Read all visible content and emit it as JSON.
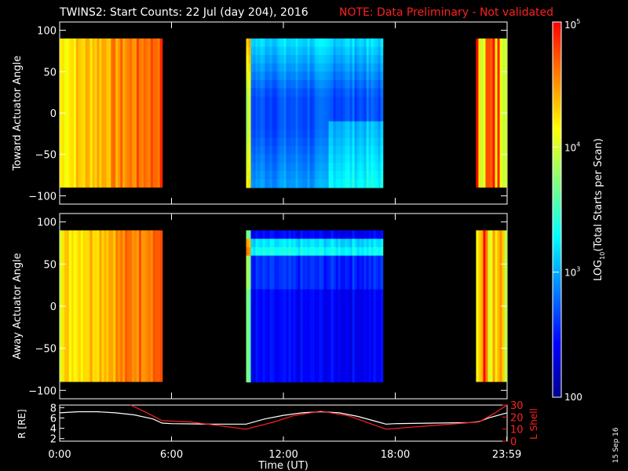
{
  "title": {
    "main": "TWINS2: Start Counts: 22 Jul (day 204), 2016",
    "note": "NOTE: Data Preliminary - Not validated",
    "note_color": "#ff2020"
  },
  "side_date": "15 Sep 16",
  "colorbar": {
    "label_pre": "LOG",
    "label_sub": "10",
    "label_post": "(Total Starts per Scan)",
    "ticks": [
      {
        "value": 100,
        "label": "100"
      },
      {
        "value": 1000,
        "label": "10",
        "exp": "3"
      },
      {
        "value": 10000,
        "label": "10",
        "exp": "4"
      },
      {
        "value": 100000,
        "label": "10",
        "exp": "5"
      }
    ],
    "colormap": [
      "#000090",
      "#0000ff",
      "#0080ff",
      "#00ffff",
      "#80ff80",
      "#ffff00",
      "#ff8000",
      "#ff0000"
    ]
  },
  "chart_data": [
    {
      "type": "heatmap",
      "ylabel": "Toward Actuator Angle",
      "xlim": [
        "0:00",
        "23:59"
      ],
      "ylim": [
        -110,
        110
      ],
      "yticks": [
        100,
        50,
        0,
        -50,
        -100
      ],
      "data_extent_deg": [
        -90,
        90
      ],
      "segments": [
        {
          "start": "0:00",
          "end": "5:30",
          "log10_counts": 4.3
        },
        {
          "start": "10:00",
          "end": "17:20",
          "log10_counts": 2.7
        },
        {
          "start": "22:20",
          "end": "23:59",
          "log10_counts": 4.3
        }
      ]
    },
    {
      "type": "heatmap",
      "ylabel": "Away Actuator Angle",
      "xlim": [
        "0:00",
        "23:59"
      ],
      "ylim": [
        -110,
        110
      ],
      "yticks": [
        100,
        50,
        0,
        -50,
        -100
      ],
      "data_extent_deg": [
        -90,
        90
      ],
      "segments": [
        {
          "start": "0:00",
          "end": "5:30",
          "log10_counts": 4.3
        },
        {
          "start": "10:00",
          "end": "17:20",
          "log10_counts": 2.4
        },
        {
          "start": "22:20",
          "end": "23:59",
          "log10_counts": 4.3
        }
      ]
    },
    {
      "type": "line",
      "xlabel": "Time (UT)",
      "ylabel_left": "R [RE]",
      "ylabel_right": "L Shell",
      "left_ylim": [
        1.5,
        8.5
      ],
      "right_ylim": [
        0,
        30
      ],
      "left_ticks": [
        8,
        6,
        4,
        2
      ],
      "right_ticks": [
        30,
        20,
        10,
        0
      ],
      "x_ticks": [
        "0:00",
        "6:00",
        "12:00",
        "18:00",
        "23:59"
      ],
      "series": [
        {
          "color": "#ffffff",
          "axis": "left",
          "x": [
            0,
            1,
            2,
            3,
            4,
            5,
            5.5,
            6,
            8,
            10,
            11,
            12,
            13,
            14,
            15,
            16,
            17,
            17.5,
            18,
            20,
            22,
            22.5,
            23,
            24
          ],
          "y": [
            7.0,
            7.2,
            7.2,
            7.0,
            6.6,
            5.8,
            5.0,
            4.9,
            4.8,
            4.8,
            5.8,
            6.5,
            7.0,
            7.2,
            7.0,
            6.3,
            5.3,
            4.8,
            4.9,
            5.0,
            5.1,
            5.3,
            6.0,
            7.0
          ]
        },
        {
          "color": "#ff2020",
          "axis": "right",
          "x": [
            3.8,
            4.5,
            5.5,
            7,
            10,
            11.5,
            12.5,
            14,
            15.5,
            17.5,
            20,
            22.5,
            23.3,
            24
          ],
          "y": [
            30,
            25,
            17,
            16,
            10,
            16,
            21,
            25,
            21,
            10,
            13,
            16,
            23,
            30
          ]
        }
      ]
    }
  ]
}
